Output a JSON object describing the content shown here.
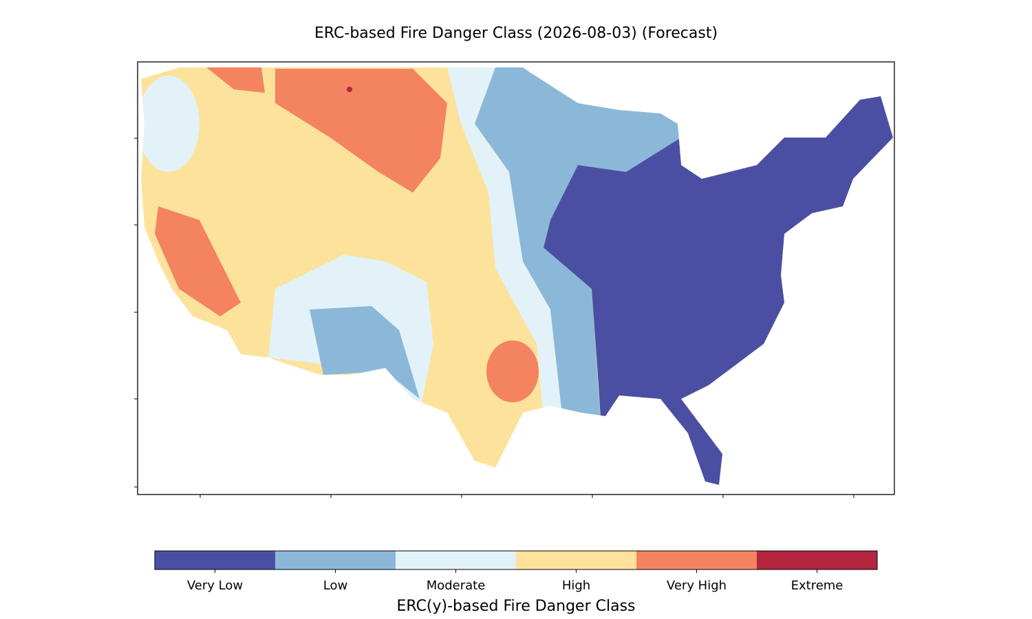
{
  "title": "ERC-based Fire Danger Class (2026-08-03) (Forecast)",
  "colorbar": {
    "label": "ERC(y)-based Fire Danger Class",
    "classes": [
      {
        "name": "Very Low",
        "color": "#4b4fa3"
      },
      {
        "name": "Low",
        "color": "#8bb8d8"
      },
      {
        "name": "Moderate",
        "color": "#e2f2f8"
      },
      {
        "name": "High",
        "color": "#fde29b"
      },
      {
        "name": "Very High",
        "color": "#f4845f"
      },
      {
        "name": "Extreme",
        "color": "#b3243f"
      }
    ]
  }
}
